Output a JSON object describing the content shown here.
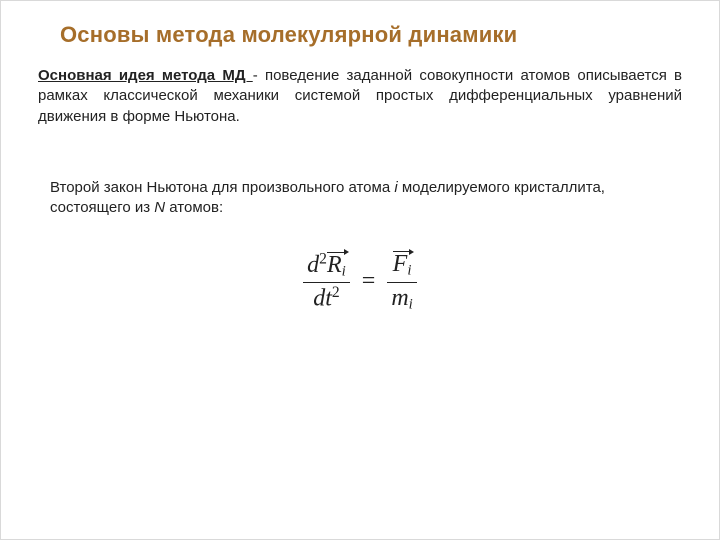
{
  "colors": {
    "title": "#a66e2a",
    "body": "#222222",
    "background": "#ffffff",
    "border": "#d9d9d9",
    "formula": "#222222"
  },
  "typography": {
    "title_font": "Trebuchet MS",
    "title_size_pt": 18,
    "title_weight": "bold",
    "body_font": "Verdana",
    "body_size_pt": 11,
    "formula_font": "Cambria Math",
    "formula_size_pt": 18
  },
  "title": "Основы метода молекулярной динамики",
  "para1": {
    "lead": "Основная идея метода МД ",
    "rest": "- поведение заданной совокупности атомов описывается в рамках классической механики системой простых дифференциальных уравнений движения в форме Ньютона."
  },
  "para2": {
    "t1": "Второй закон Ньютона для произвольного атома ",
    "i1": "i",
    "t2": " моделируемого кристаллита, состоящего из ",
    "i2": "N",
    "t3": " атомов:"
  },
  "formula": {
    "lhs_num_d": "d",
    "lhs_num_exp": "2",
    "lhs_num_vec_base": "R",
    "lhs_num_vec_sub": "i",
    "lhs_den_d": "d",
    "lhs_den_t": "t",
    "lhs_den_exp": "2",
    "eq": "=",
    "rhs_num_vec_base": "F",
    "rhs_num_vec_sub": "i",
    "rhs_den_base": "m",
    "rhs_den_sub": "i"
  }
}
